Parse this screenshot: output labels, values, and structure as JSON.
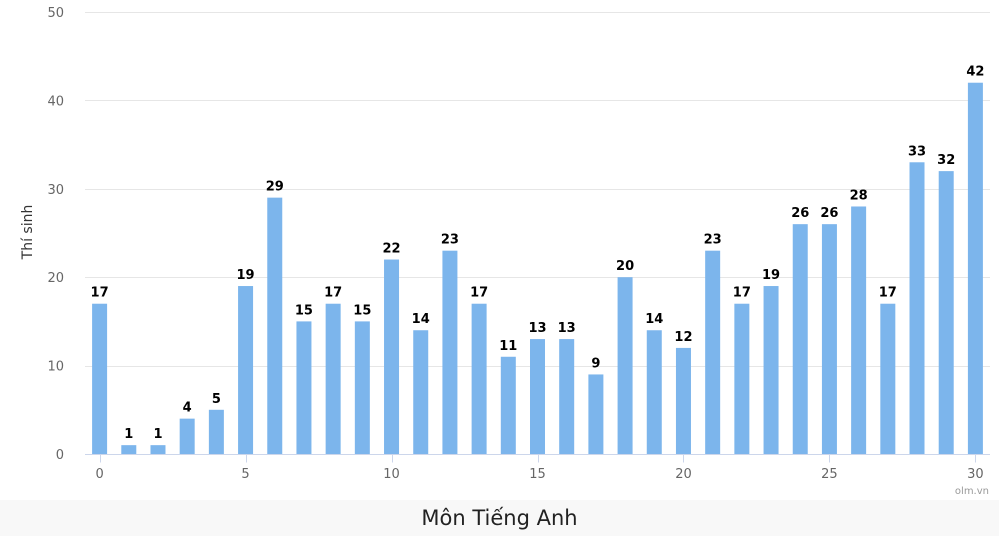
{
  "chart_data": {
    "type": "bar",
    "x": [
      0,
      1,
      2,
      3,
      4,
      5,
      6,
      7,
      8,
      9,
      10,
      11,
      12,
      13,
      14,
      15,
      16,
      17,
      18,
      19,
      20,
      21,
      22,
      23,
      24,
      25,
      26,
      27,
      28,
      29,
      30
    ],
    "values": [
      17,
      1,
      1,
      4,
      5,
      19,
      29,
      15,
      17,
      15,
      22,
      14,
      23,
      17,
      11,
      13,
      13,
      9,
      20,
      14,
      12,
      23,
      17,
      19,
      26,
      26,
      28,
      17,
      33,
      32,
      42
    ],
    "xticks": [
      0,
      5,
      10,
      15,
      20,
      25,
      30
    ],
    "yticks": [
      0,
      10,
      20,
      30,
      40,
      50
    ],
    "ylim": [
      0,
      50
    ],
    "xlim": [
      -0.5,
      30.5
    ],
    "ylabel": "Thí sinh",
    "xlabel": "",
    "grid": true,
    "bar_color": "#7cb5ec",
    "credits": "olm.vn"
  },
  "footer": {
    "title": "Môn Tiếng Anh"
  }
}
